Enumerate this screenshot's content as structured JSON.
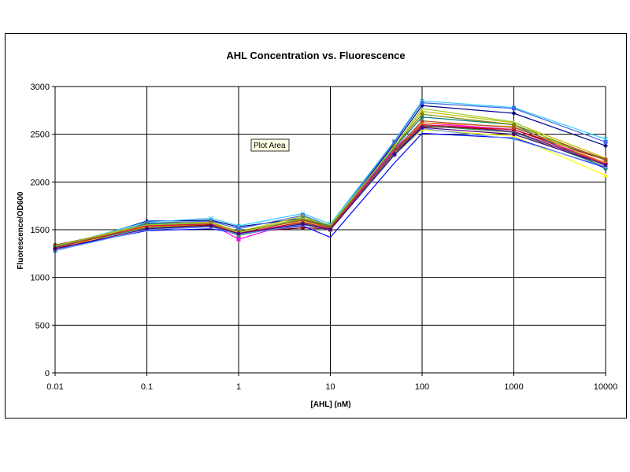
{
  "colors": {
    "background": "#ffffff",
    "gridline": "#000000",
    "axis": "#000000",
    "tooltip_bg": "#ffffe1"
  },
  "tooltip": "Plot Area",
  "chart_data": {
    "type": "line",
    "title": "AHL Concentration vs. Fluorescence",
    "xlabel": "[AHL] (nM)",
    "ylabel": "Fluorescence/OD600",
    "x_scale": "log",
    "x": [
      0.01,
      0.1,
      0.5,
      1,
      5,
      10,
      50,
      100,
      1000,
      10000
    ],
    "x_ticks": [
      0.01,
      0.1,
      1,
      10,
      100,
      1000,
      10000
    ],
    "x_tick_labels": [
      "0.01",
      "0.1",
      "1",
      "10",
      "100",
      "1000",
      "10000"
    ],
    "xlim": [
      0.01,
      10000
    ],
    "ylim": [
      0,
      3000
    ],
    "y_ticks": [
      0,
      500,
      1000,
      1500,
      2000,
      2500,
      3000
    ],
    "y_tick_labels": [
      "0",
      "500",
      "1000",
      "1500",
      "2000",
      "2500",
      "3000"
    ],
    "grid": true,
    "legend": "none",
    "series": [
      {
        "color": "#00008b",
        "marker": "diamond",
        "values": [
          1300,
          1590,
          1600,
          1530,
          1620,
          1530,
          2400,
          2800,
          2720,
          2380
        ]
      },
      {
        "color": "#33ccff",
        "marker": "x",
        "values": [
          1320,
          1580,
          1620,
          1540,
          1670,
          1560,
          2430,
          2850,
          2780,
          2450
        ]
      },
      {
        "color": "#4169e1",
        "marker": "square",
        "values": [
          1280,
          1570,
          1590,
          1510,
          1650,
          1540,
          2420,
          2830,
          2770,
          2420
        ]
      },
      {
        "color": "#ff00ff",
        "marker": "square",
        "values": [
          1310,
          1540,
          1560,
          1400,
          1600,
          1520,
          2350,
          2620,
          2550,
          2200
        ]
      },
      {
        "color": "#c0c000",
        "marker": "triangle",
        "values": [
          1330,
          1560,
          1580,
          1480,
          1640,
          1530,
          2380,
          2740,
          2620,
          2250
        ]
      },
      {
        "color": "#ffff00",
        "marker": "triangle",
        "values": [
          1300,
          1530,
          1550,
          1450,
          1590,
          1510,
          2280,
          2550,
          2480,
          2070
        ]
      },
      {
        "color": "#800080",
        "marker": "x",
        "values": [
          1320,
          1550,
          1570,
          1460,
          1580,
          1500,
          2320,
          2600,
          2530,
          2180
        ]
      },
      {
        "color": "#8b0000",
        "marker": "circle",
        "values": [
          1340,
          1520,
          1550,
          1470,
          1520,
          1510,
          2300,
          2580,
          2550,
          2230
        ]
      },
      {
        "color": "#008080",
        "marker": "circle",
        "values": [
          1310,
          1560,
          1570,
          1470,
          1620,
          1540,
          2360,
          2680,
          2600,
          2140
        ]
      },
      {
        "color": "#0000ff",
        "marker": "none",
        "values": [
          1300,
          1490,
          1510,
          1460,
          1540,
          1420,
          2200,
          2510,
          2460,
          2150
        ]
      },
      {
        "color": "#ff8c00",
        "marker": "triangle",
        "values": [
          1330,
          1530,
          1560,
          1450,
          1560,
          1500,
          2300,
          2620,
          2580,
          2200
        ]
      },
      {
        "color": "#808000",
        "marker": "circle",
        "values": [
          1320,
          1550,
          1570,
          1480,
          1610,
          1530,
          2370,
          2710,
          2600,
          2230
        ]
      },
      {
        "color": "#a0522d",
        "marker": "circle",
        "values": [
          1340,
          1540,
          1560,
          1470,
          1600,
          1520,
          2330,
          2640,
          2570,
          2240
        ]
      },
      {
        "color": "#2e8b57",
        "marker": "triangle",
        "values": [
          1320,
          1520,
          1540,
          1440,
          1570,
          1510,
          2310,
          2590,
          2520,
          2160
        ]
      },
      {
        "color": "#6495ed",
        "marker": "diamond",
        "values": [
          1280,
          1500,
          1530,
          1450,
          1550,
          1500,
          2280,
          2560,
          2450,
          2160
        ]
      },
      {
        "color": "#9acd32",
        "marker": "none",
        "values": [
          1330,
          1550,
          1570,
          1470,
          1620,
          1550,
          2370,
          2770,
          2630,
          2170
        ]
      },
      {
        "color": "#dc143c",
        "marker": "none",
        "values": [
          1310,
          1540,
          1560,
          1460,
          1580,
          1510,
          2330,
          2600,
          2550,
          2190
        ]
      },
      {
        "color": "#4b0082",
        "marker": "circle",
        "values": [
          1300,
          1510,
          1540,
          1460,
          1560,
          1500,
          2290,
          2570,
          2500,
          2180
        ]
      }
    ]
  }
}
